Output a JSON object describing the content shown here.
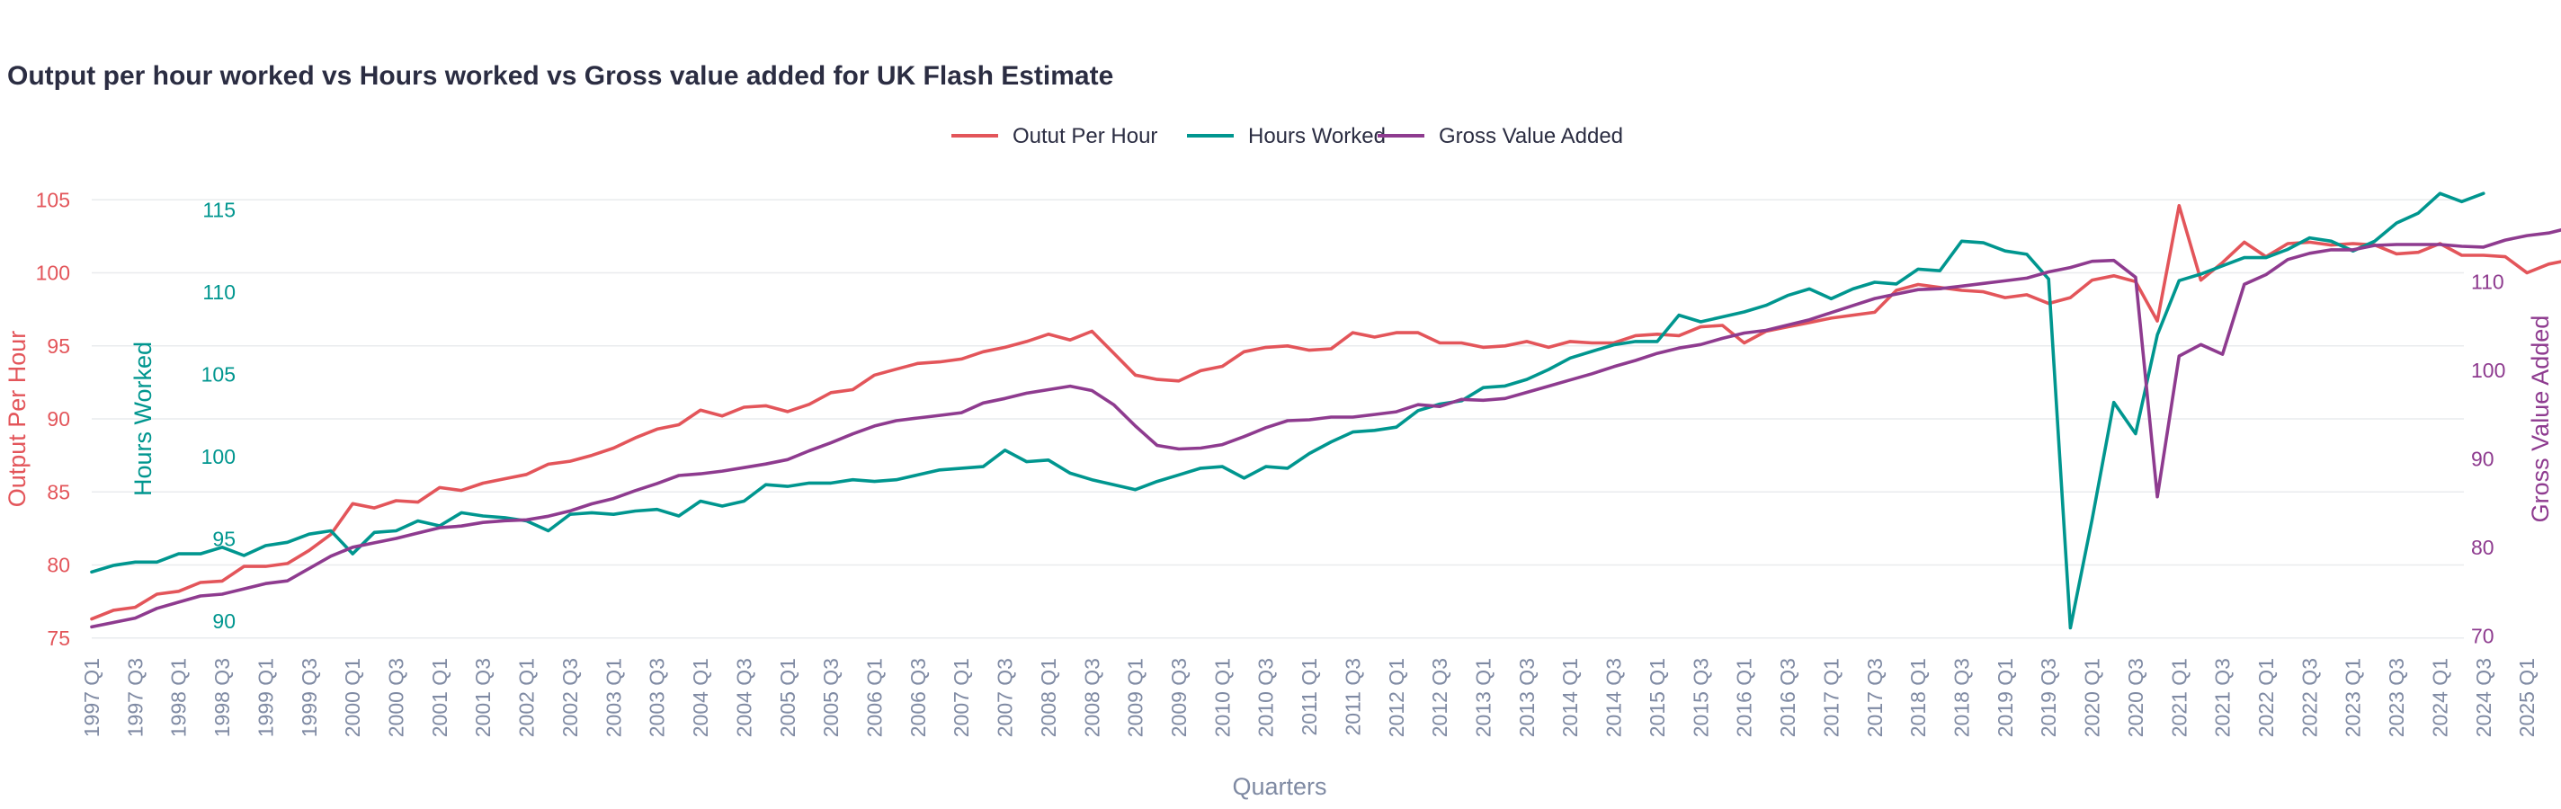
{
  "colors": {
    "output_per_hour": "#e3555a",
    "hours_worked": "#00968f",
    "gva": "#8e3b8f",
    "axis_text": "#7f8aa3",
    "grid": "#e9ebee"
  },
  "chart_data": {
    "type": "line",
    "title": "Output per hour worked vs Hours worked vs Gross value added for UK Flash Estimate",
    "xlabel": "Quarters",
    "legend_position": "top-center",
    "grid": true,
    "x_tick_labels": [
      "1997 Q1",
      "1997 Q3",
      "1998 Q1",
      "1998 Q3",
      "1999 Q1",
      "1999 Q3",
      "2000 Q1",
      "2000 Q3",
      "2001 Q1",
      "2001 Q3",
      "2002 Q1",
      "2002 Q3",
      "2003 Q1",
      "2003 Q3",
      "2004 Q1",
      "2004 Q3",
      "2005 Q1",
      "2005 Q3",
      "2006 Q1",
      "2006 Q3",
      "2007 Q1",
      "2007 Q3",
      "2008 Q1",
      "2008 Q3",
      "2009 Q1",
      "2009 Q3",
      "2010 Q1",
      "2010 Q3",
      "2011 Q1",
      "2011 Q3",
      "2012 Q1",
      "2012 Q3",
      "2013 Q1",
      "2013 Q3",
      "2014 Q1",
      "2014 Q3",
      "2015 Q1",
      "2015 Q3",
      "2016 Q1",
      "2016 Q3",
      "2017 Q1",
      "2017 Q3",
      "2018 Q1",
      "2018 Q3",
      "2019 Q1",
      "2019 Q3",
      "2020 Q1",
      "2020 Q3",
      "2021 Q1",
      "2021 Q3",
      "2022 Q1",
      "2022 Q3",
      "2023 Q1",
      "2023 Q3",
      "2024 Q1",
      "2024 Q3",
      "2025 Q1"
    ],
    "axes": {
      "output_per_hour": {
        "label": "Output Per Hour",
        "side": "left",
        "range": [
          74,
          106
        ],
        "ticks": [
          "75",
          "80",
          "85",
          "90",
          "95",
          "100",
          "105"
        ]
      },
      "hours_worked": {
        "label": "Hours Worked",
        "side": "left-inner",
        "range": [
          88.1,
          116.5
        ],
        "ticks": [
          "90",
          "95",
          "100",
          "105",
          "110",
          "115"
        ]
      },
      "gva": {
        "label": "Gross Value Added",
        "side": "right",
        "range": [
          68.1,
          120.9
        ],
        "ticks": [
          "70",
          "80",
          "90",
          "100",
          "110"
        ]
      }
    },
    "series": [
      {
        "name": "Outut Per Hour",
        "axis": "output_per_hour",
        "values": [
          76.3,
          76.9,
          77.1,
          78.0,
          78.2,
          78.8,
          78.9,
          79.9,
          79.9,
          80.1,
          81.0,
          82.1,
          84.2,
          83.9,
          84.4,
          84.3,
          85.3,
          85.1,
          85.6,
          85.9,
          86.2,
          86.9,
          87.1,
          87.5,
          88.0,
          88.7,
          89.3,
          89.6,
          90.6,
          90.2,
          90.8,
          90.9,
          90.5,
          91.0,
          91.8,
          92.0,
          93.0,
          93.4,
          93.8,
          93.9,
          94.1,
          94.6,
          94.9,
          95.3,
          95.8,
          95.4,
          96.0,
          94.5,
          93.0,
          92.7,
          92.6,
          93.3,
          93.6,
          94.6,
          94.9,
          95.0,
          94.7,
          94.8,
          95.9,
          95.6,
          95.9,
          95.9,
          95.2,
          95.2,
          94.9,
          95.0,
          95.3,
          94.9,
          95.3,
          95.2,
          95.2,
          95.7,
          95.8,
          95.7,
          96.3,
          96.4,
          95.2,
          96.0,
          96.3,
          96.6,
          96.9,
          97.1,
          97.3,
          98.8,
          99.2,
          99.0,
          98.8,
          98.7,
          98.3,
          98.5,
          97.9,
          98.3,
          99.5,
          99.8,
          99.4,
          96.7,
          104.6,
          99.5,
          100.7,
          102.1,
          101.1,
          102.0,
          102.1,
          101.9,
          102.0,
          101.9,
          101.3,
          101.4,
          102.0,
          101.2,
          101.2,
          101.1,
          100.0,
          100.6,
          100.9
        ]
      },
      {
        "name": "Hours Worked",
        "axis": "hours_worked",
        "values": [
          93.0,
          93.4,
          93.6,
          93.6,
          94.1,
          94.1,
          94.5,
          94.0,
          94.6,
          94.8,
          95.3,
          95.5,
          94.1,
          95.4,
          95.5,
          96.1,
          95.8,
          96.6,
          96.4,
          96.3,
          96.1,
          95.5,
          96.5,
          96.6,
          96.5,
          96.7,
          96.8,
          96.4,
          97.3,
          97.0,
          97.3,
          98.3,
          98.2,
          98.4,
          98.4,
          98.6,
          98.5,
          98.6,
          98.9,
          99.2,
          99.3,
          99.4,
          100.4,
          99.7,
          99.8,
          99.0,
          98.6,
          98.3,
          98.0,
          98.5,
          98.9,
          99.3,
          99.4,
          98.7,
          99.4,
          99.3,
          100.2,
          100.9,
          101.5,
          101.6,
          101.8,
          102.8,
          103.2,
          103.4,
          104.2,
          104.3,
          104.7,
          105.3,
          106.0,
          106.4,
          106.8,
          107.0,
          107.0,
          108.6,
          108.2,
          108.5,
          108.8,
          109.2,
          109.8,
          110.2,
          109.6,
          110.2,
          110.6,
          110.5,
          111.4,
          111.3,
          113.1,
          113.0,
          112.5,
          112.3,
          110.8,
          89.6,
          96.2,
          103.3,
          101.4,
          107.4,
          110.7,
          111.1,
          111.6,
          112.1,
          112.1,
          112.6,
          113.3,
          113.1,
          112.5,
          113.1,
          114.2,
          114.8,
          116.0,
          115.5,
          116.0
        ]
      },
      {
        "name": "Gross Value Added",
        "axis": "gva",
        "values": [
          71.0,
          71.5,
          72.0,
          73.1,
          73.8,
          74.5,
          74.7,
          75.3,
          75.9,
          76.2,
          77.6,
          79.0,
          80.0,
          80.5,
          81.0,
          81.6,
          82.2,
          82.4,
          82.8,
          83.0,
          83.1,
          83.5,
          84.1,
          84.9,
          85.5,
          86.4,
          87.2,
          88.1,
          88.3,
          88.6,
          89.0,
          89.4,
          89.9,
          90.9,
          91.8,
          92.8,
          93.7,
          94.3,
          94.6,
          94.9,
          95.2,
          96.3,
          96.8,
          97.4,
          97.8,
          98.2,
          97.7,
          96.1,
          93.7,
          91.5,
          91.1,
          91.2,
          91.6,
          92.5,
          93.5,
          94.3,
          94.4,
          94.7,
          94.7,
          95.0,
          95.3,
          96.1,
          95.9,
          96.7,
          96.6,
          96.8,
          97.5,
          98.2,
          98.9,
          99.6,
          100.4,
          101.1,
          101.9,
          102.5,
          102.9,
          103.6,
          104.2,
          104.5,
          105.1,
          105.7,
          106.5,
          107.3,
          108.1,
          108.6,
          109.1,
          109.2,
          109.5,
          109.8,
          110.1,
          110.4,
          111.1,
          111.6,
          112.3,
          112.4,
          110.5,
          85.7,
          101.6,
          102.9,
          101.8,
          109.7,
          110.8,
          112.5,
          113.2,
          113.6,
          113.6,
          114.1,
          114.2,
          114.2,
          114.2,
          114.0,
          113.9,
          114.7,
          115.2,
          115.5,
          116.1
        ]
      }
    ]
  }
}
